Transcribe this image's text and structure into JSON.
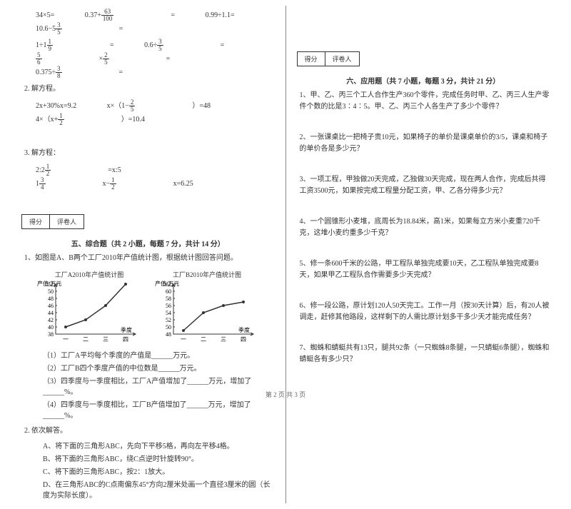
{
  "left": {
    "eq_row1": [
      "34×5=",
      "0.37+ 63/100 =",
      "0.99÷1.1=",
      "10.6−5 3/5 ="
    ],
    "eq_row2": [
      "1÷1 1/9 =",
      "0.6÷ 3/5 =",
      "5/6 × 2/5 =",
      "0.375÷ 3/8 ="
    ],
    "q2_title": "2. 解方程。",
    "q2_eqs": [
      "2x+30%x=9.2",
      "x×（1− 2/5 ）=48",
      "4×（x+ 1/2 ）=10.4"
    ],
    "q3_title": "3. 解方程：",
    "q3_eqs": [
      "2:2 1/2 =x:5",
      "1 3/4 x− 1/2 x=6.25"
    ],
    "score_labels": [
      "得分",
      "评卷人"
    ],
    "section5_title": "五、综合题（共 2 小题，每题 7 分，共计 14 分）",
    "q5_1": "1、如图是A、B两个工厂2010年产值统计图，根据统计图回答问题。",
    "chartA": {
      "title": "工厂A2010年产值统计图",
      "ylabel": "产值/万元",
      "xlabel": "季度",
      "xticks": [
        "一",
        "二",
        "三",
        "四"
      ],
      "yticks": [
        38,
        40,
        42,
        44,
        46,
        48,
        50,
        52
      ],
      "values": [
        40,
        42,
        46,
        52
      ],
      "line_color": "#333",
      "bg": "#fff"
    },
    "chartB": {
      "title": "工厂B2010年产值统计图",
      "ylabel": "产值/万元",
      "xlabel": "季度",
      "xticks": [
        "一",
        "二",
        "三",
        "四"
      ],
      "yticks": [
        48,
        50,
        52,
        54,
        56,
        58,
        60,
        62
      ],
      "values": [
        49,
        54,
        56,
        57
      ],
      "line_color": "#333",
      "bg": "#fff"
    },
    "sub1": "（1）工厂A平均每个季度的产值是______万元。",
    "sub2": "（2）工厂B四个季度产值的中位数是______万元。",
    "sub3": "（3）四季度与一季度相比，工厂A产值增加了______万元，增加了______%。",
    "sub4": "（4）四季度与一季度相比，工厂B产值增加了______万元，增加了______%。",
    "q5_2": "2. 依次解答。",
    "subA": "A、将下面的三角形ABC，先向下平移5格，再向左平移4格。",
    "subB": "B、将下面的三角形ABC，绕C点逆时针旋转90°。",
    "subC": "C、将下面的三角形ABC，按2：1放大。",
    "subD": "D、在三角形ABC的C点南偏东45°方向2厘米处画一个直径3厘米的圆（长度为实际长度）。"
  },
  "right": {
    "score_labels": [
      "得分",
      "评卷人"
    ],
    "section6_title": "六、应用题（共 7 小题，每题 3 分，共计 21 分）",
    "q1": "1、甲、乙、丙三个工人合作生产360个零件，完成任务时甲、乙、丙三人生产零件个数的比是3∶4∶5。甲、乙、丙三个人各生产了多少个零件？",
    "q2": "2、一张课桌比一把椅子贵10元，如果椅子的单价是课桌单价的3/5，课桌和椅子的单价各是多少元？",
    "q3": "3、一项工程，甲独做20天完成，乙独做30天完成，现在两人合作，完成后共得工资3500元，如果按完成工程量分配工资，甲、乙各分得多少元？",
    "q4": "4、一个圆锥形小麦堆，底周长为18.84米，高1米，如果每立方米小麦重720千克，这堆小麦约重多少千克？",
    "q5": "5、修一条600千米的公路，甲工程队单独完成要10天，乙工程队单独完成要8天，如果甲乙工程队合作需要多少天完成？",
    "q6": "6、修一段公路，原计划120人50天完工。工作一月（按30天计算）后，有20人被调走，赶修其他路段，这样剩下的人需比原计划多干多少天才能完成任务？",
    "q7": "7、蜘蛛和蜻蜓共有13只，腿共92条（一只蜘蛛8条腿，一只蜻蜓6条腿），蜘蛛和蜻蜓各有多少只？"
  },
  "footer": "第 2 页 共 3 页"
}
